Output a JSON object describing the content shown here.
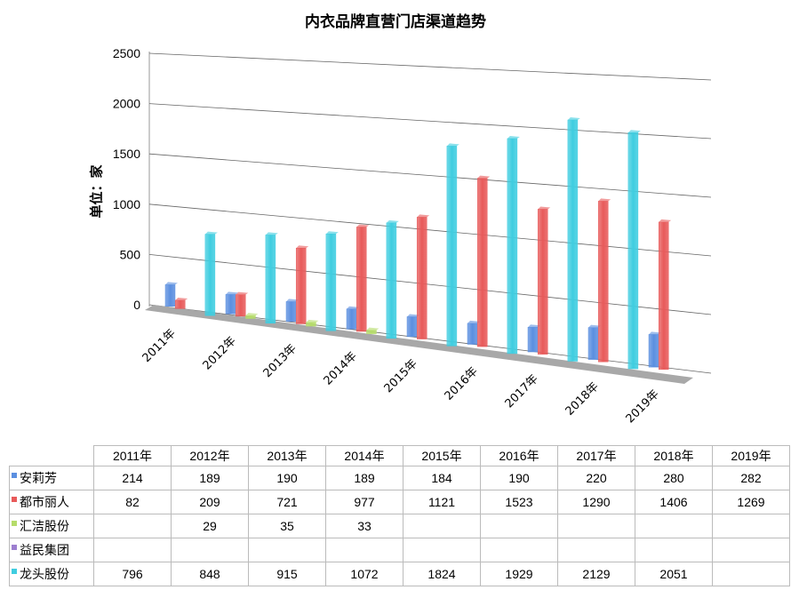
{
  "chart_data": {
    "type": "bar",
    "title": "内衣品牌直营门店渠道趋势",
    "ylabel": "单位：家",
    "ylim": [
      0,
      2500
    ],
    "yticks": [
      "0",
      "500",
      "1000",
      "1500",
      "2000",
      "2500"
    ],
    "grid": true,
    "style": "3d-clustered-column",
    "categories": [
      "2011年",
      "2012年",
      "2013年",
      "2014年",
      "2015年",
      "2016年",
      "2017年",
      "2018年",
      "2019年"
    ],
    "series": [
      {
        "name": "安莉芳",
        "color": "#5b8fe0",
        "values": [
          214,
          189,
          190,
          189,
          184,
          190,
          220,
          280,
          282
        ]
      },
      {
        "name": "都市丽人",
        "color": "#e85a5a",
        "values": [
          82,
          209,
          721,
          977,
          1121,
          1523,
          1290,
          1406,
          1269
        ]
      },
      {
        "name": "汇洁股份",
        "color": "#b5dc6a",
        "values": [
          null,
          29,
          35,
          33,
          null,
          null,
          null,
          null,
          null
        ]
      },
      {
        "name": "益民集团",
        "color": "#9d7fd0",
        "values": [
          null,
          null,
          null,
          null,
          null,
          null,
          null,
          null,
          null
        ]
      },
      {
        "name": "龙头股份",
        "color": "#3fcde0",
        "values": [
          796,
          848,
          915,
          1072,
          1824,
          1929,
          2129,
          2051,
          null
        ]
      }
    ]
  }
}
